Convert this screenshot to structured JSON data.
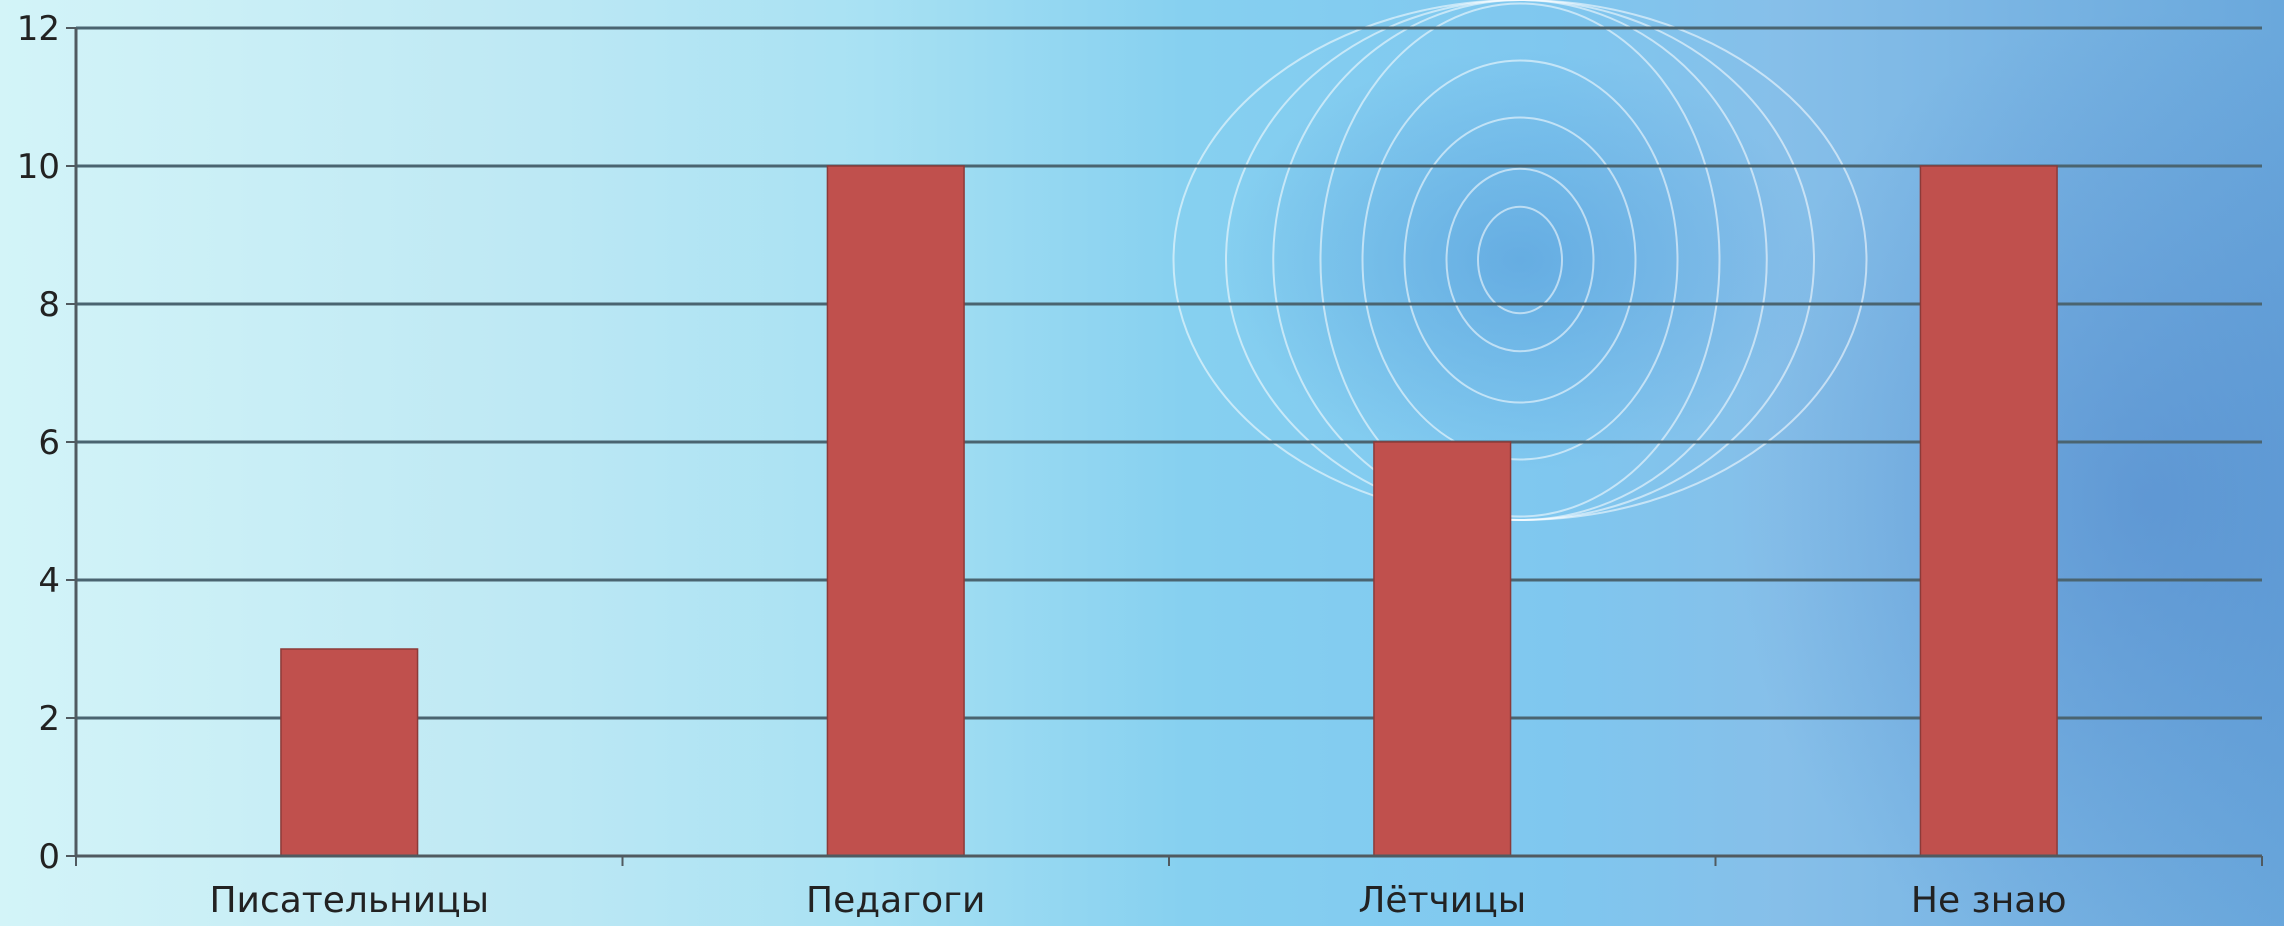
{
  "chart_data": {
    "type": "bar",
    "categories": [
      "Писательницы",
      "Педагоги",
      "Лётчицы",
      "Не знаю"
    ],
    "values": [
      3,
      10,
      6,
      10
    ],
    "ylim": [
      0,
      12
    ],
    "yticks": [
      0,
      2,
      4,
      6,
      8,
      10,
      12
    ],
    "grid": true,
    "legend": "none",
    "colors": {
      "bar": "#c0504d",
      "bar_border": "#8c3a38",
      "grid": "#4a6470",
      "axis": "#505a60"
    }
  }
}
